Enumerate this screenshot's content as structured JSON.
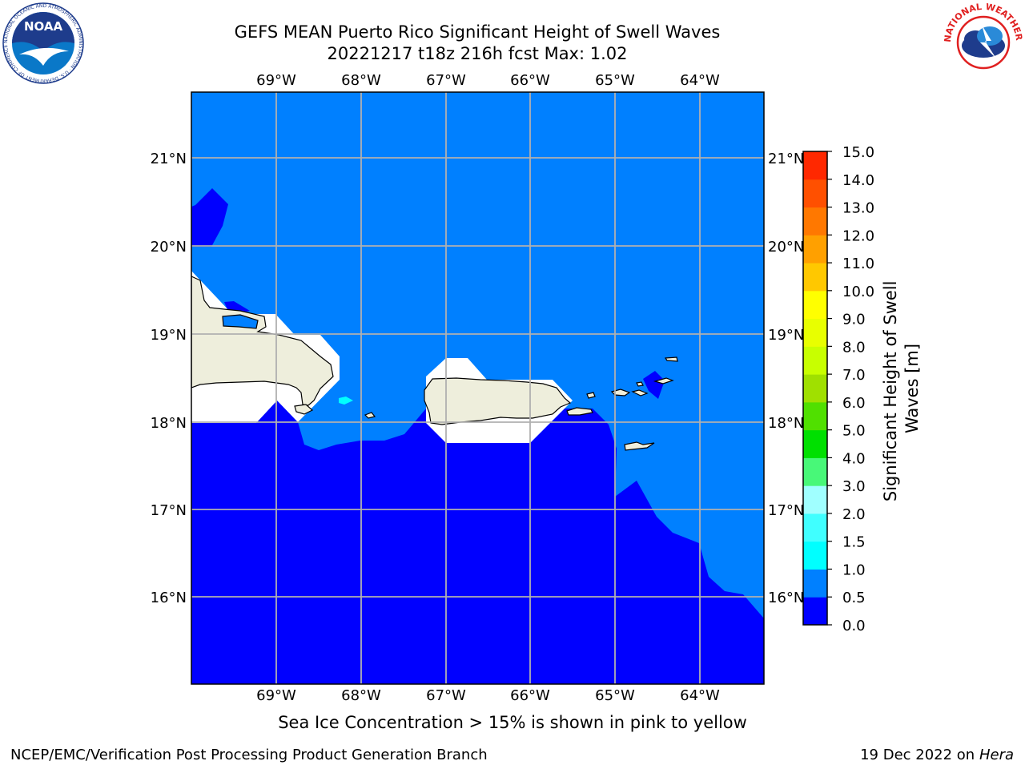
{
  "header": {
    "title_line1": "GEFS MEAN Puerto Rico Significant Height of Swell Waves",
    "title_line2": "20221217 t18z 216h fcst   Max: 1.02"
  },
  "map": {
    "lon_labels": [
      "69°W",
      "68°W",
      "67°W",
      "66°W",
      "65°W",
      "64°W"
    ],
    "lat_labels": [
      "21°N",
      "20°N",
      "19°N",
      "18°N",
      "17°N",
      "16°N"
    ],
    "colors": {
      "ocean_low": "#0000ff",
      "ocean_mid": "#0080ff",
      "cyan": "#00ffff",
      "land": "#eeeedc",
      "nodata": "#ffffff",
      "grid": "#b0b0b0"
    }
  },
  "colorbar": {
    "label": "Significant Height of Swell Waves [m]",
    "label_line1": "Significant Height of Swell",
    "label_line2": "Waves [m]",
    "ticks": [
      "0.0",
      "0.5",
      "1.0",
      "1.5",
      "2.0",
      "3.0",
      "4.0",
      "5.0",
      "6.0",
      "7.0",
      "8.0",
      "9.0",
      "10.0",
      "11.0",
      "12.0",
      "13.0",
      "14.0",
      "15.0"
    ],
    "colors": [
      "#0000ff",
      "#0080ff",
      "#00ffff",
      "#40ffff",
      "#a0ffff",
      "#48f878",
      "#00e000",
      "#50e000",
      "#a0e000",
      "#c8ff00",
      "#e8ff00",
      "#ffff00",
      "#ffc800",
      "#ffa000",
      "#ff7800",
      "#ff5000",
      "#ff2800"
    ]
  },
  "note": "Sea Ice Concentration > 15% is shown in pink to yellow",
  "footer": {
    "left": "NCEP/EMC/Verification Post Processing Product Generation Branch",
    "date": "19 Dec 2022 on",
    "machine": "Hera"
  },
  "logos": {
    "noaa_text": "NOAA",
    "noaa_ring": "NATIONAL OCEANIC AND ATMOSPHERIC ADMINISTRATION · U.S. DEPARTMENT OF COMMERCE ·",
    "nws_ring": "NATIONAL WEATHER SERVICE"
  }
}
